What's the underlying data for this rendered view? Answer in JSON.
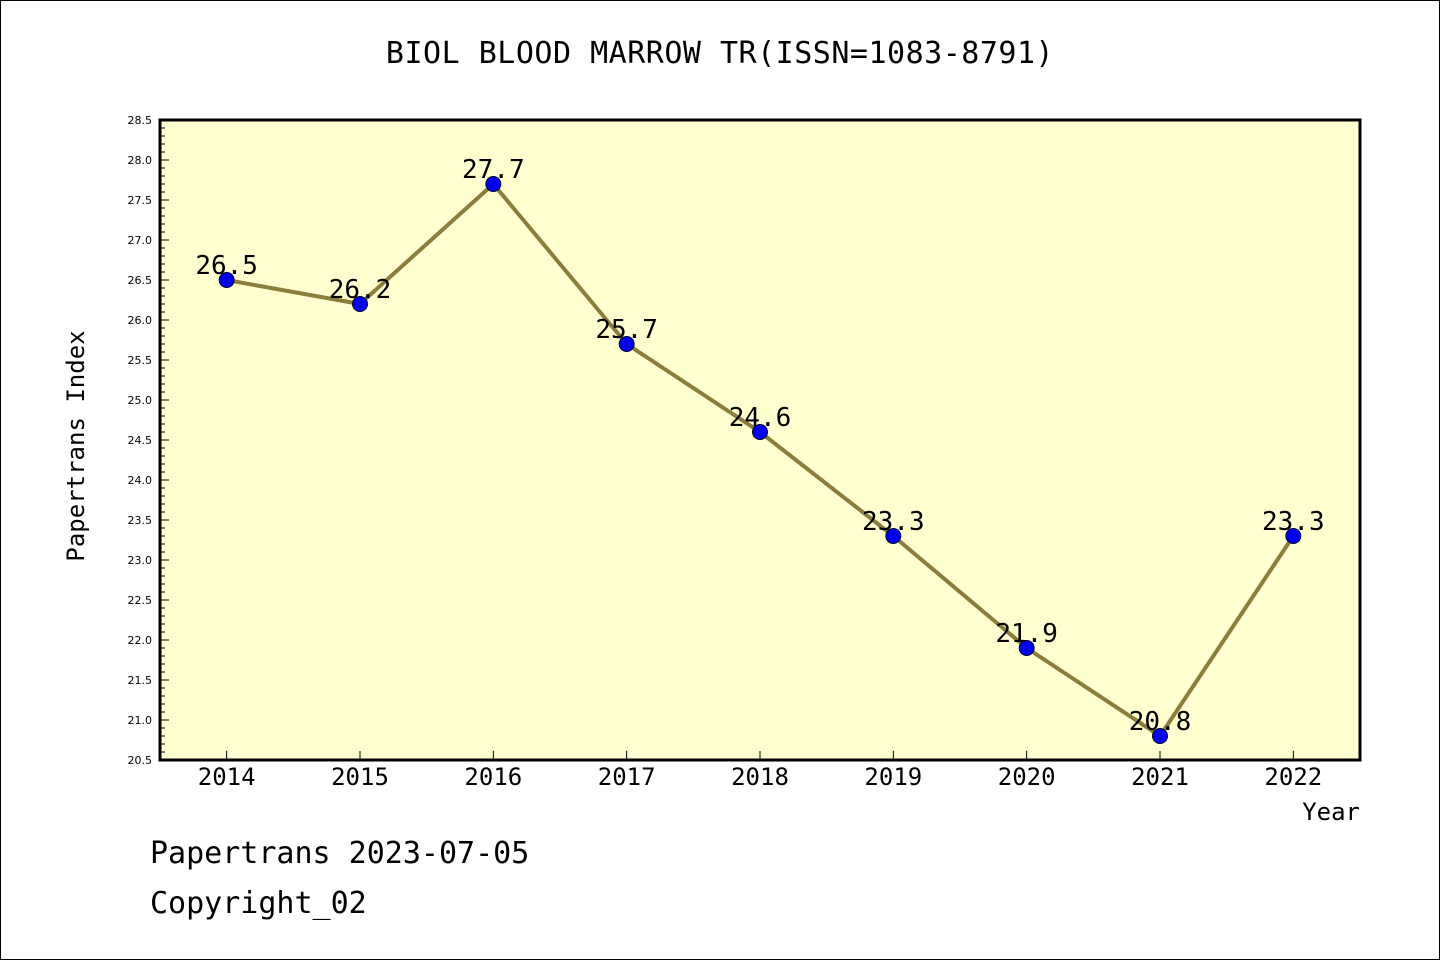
{
  "chart_data": {
    "type": "line",
    "title": "BIOL BLOOD MARROW TR(ISSN=1083-8791)",
    "xlabel": "Year",
    "ylabel": "Papertrans Index",
    "categories": [
      "2014",
      "2015",
      "2016",
      "2017",
      "2018",
      "2019",
      "2020",
      "2021",
      "2022"
    ],
    "values": [
      26.5,
      26.2,
      27.7,
      25.7,
      24.6,
      23.3,
      21.9,
      20.8,
      23.3
    ],
    "data_labels": [
      "26.5",
      "26.2",
      "27.7",
      "25.7",
      "24.6",
      "23.3",
      "21.9",
      "20.8",
      "23.3"
    ],
    "ylim": [
      20.5,
      28.5
    ],
    "y_ticks": [
      "20.5",
      "21.0",
      "21.5",
      "22.0",
      "22.5",
      "23.0",
      "23.5",
      "24.0",
      "24.5",
      "25.0",
      "25.5",
      "26.0",
      "26.5",
      "27.0",
      "27.5",
      "28.0",
      "28.5"
    ],
    "grid": false,
    "legend": "none",
    "colors": {
      "line": "#8b7d3a",
      "marker": "#0000ee",
      "plot_background": "#ffffd0"
    }
  },
  "footer": {
    "date_line": "Papertrans 2023-07-05",
    "copyright": "Copyright_02"
  }
}
